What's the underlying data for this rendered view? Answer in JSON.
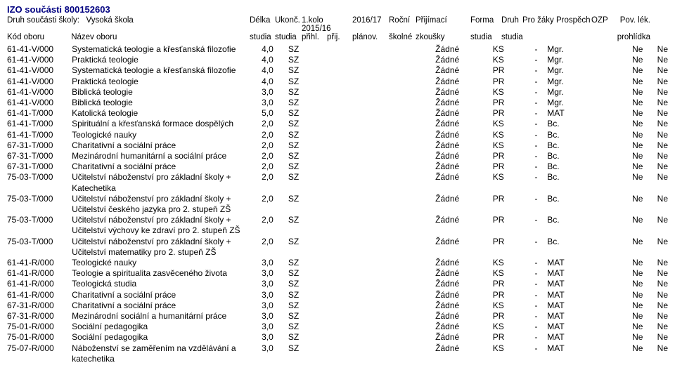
{
  "header": {
    "izo_line": "IZO součásti 800152603",
    "druh_label": "Druh součásti školy:",
    "druh_value": "Vysoká škola",
    "kod_label": "Kód oboru",
    "nazev_label": "Název oboru",
    "cols_top": {
      "delka": "Délka",
      "ukon": "Ukonč.",
      "kolo1": "1.kolo 2015/16",
      "kolo2": "2016/17",
      "rocni": "Roční",
      "prij": "Přijímací",
      "forma": "Forma",
      "druh": "Druh",
      "prozaky": "Pro žáky",
      "prospech": "Prospěch",
      "ozp": "OZP",
      "pov": "Pov. lék."
    },
    "cols_bot": {
      "delka": "studia",
      "ukon": "studia",
      "kolo1": "přihl.",
      "kolo1b": "přij.",
      "kolo2": "plánov.",
      "rocni": "školné",
      "prij": "zkoušky",
      "forma": "studia",
      "druh": "studia",
      "pov": "prohlídka"
    }
  },
  "rows": [
    {
      "kod": "61-41-V/000",
      "nazev": "Systematická teologie a křesťanská filozofie",
      "cont": "",
      "delka": "4,0",
      "ukon": "SZ",
      "prij": "Žádné",
      "for": "KS",
      "druh": "-",
      "pz": "Mgr.",
      "ozp": "Ne",
      "pov": "Ne"
    },
    {
      "kod": "61-41-V/000",
      "nazev": "Praktická teologie",
      "cont": "",
      "delka": "4,0",
      "ukon": "SZ",
      "prij": "Žádné",
      "for": "KS",
      "druh": "-",
      "pz": "Mgr.",
      "ozp": "Ne",
      "pov": "Ne"
    },
    {
      "kod": "61-41-V/000",
      "nazev": "Systematická teologie a křesťanská filozofie",
      "cont": "",
      "delka": "4,0",
      "ukon": "SZ",
      "prij": "Žádné",
      "for": "PR",
      "druh": "-",
      "pz": "Mgr.",
      "ozp": "Ne",
      "pov": "Ne"
    },
    {
      "kod": "61-41-V/000",
      "nazev": "Praktická teologie",
      "cont": "",
      "delka": "4,0",
      "ukon": "SZ",
      "prij": "Žádné",
      "for": "PR",
      "druh": "-",
      "pz": "Mgr.",
      "ozp": "Ne",
      "pov": "Ne"
    },
    {
      "kod": "61-41-V/000",
      "nazev": "Biblická teologie",
      "cont": "",
      "delka": "3,0",
      "ukon": "SZ",
      "prij": "Žádné",
      "for": "KS",
      "druh": "-",
      "pz": "Mgr.",
      "ozp": "Ne",
      "pov": "Ne"
    },
    {
      "kod": "61-41-V/000",
      "nazev": "Biblická teologie",
      "cont": "",
      "delka": "3,0",
      "ukon": "SZ",
      "prij": "Žádné",
      "for": "PR",
      "druh": "-",
      "pz": "Mgr.",
      "ozp": "Ne",
      "pov": "Ne"
    },
    {
      "kod": "61-41-T/000",
      "nazev": "Katolická teologie",
      "cont": "",
      "delka": "5,0",
      "ukon": "SZ",
      "prij": "Žádné",
      "for": "PR",
      "druh": "-",
      "pz": "MAT",
      "ozp": "Ne",
      "pov": "Ne"
    },
    {
      "kod": "61-41-T/000",
      "nazev": "Spirituální a křesťanská formace dospělých",
      "cont": "",
      "delka": "2,0",
      "ukon": "SZ",
      "prij": "Žádné",
      "for": "KS",
      "druh": "-",
      "pz": "Bc.",
      "ozp": "Ne",
      "pov": "Ne"
    },
    {
      "kod": "61-41-T/000",
      "nazev": "Teologické nauky",
      "cont": "",
      "delka": "2,0",
      "ukon": "SZ",
      "prij": "Žádné",
      "for": "KS",
      "druh": "-",
      "pz": "Bc.",
      "ozp": "Ne",
      "pov": "Ne"
    },
    {
      "kod": "67-31-T/000",
      "nazev": "Charitativní a sociální práce",
      "cont": "",
      "delka": "2,0",
      "ukon": "SZ",
      "prij": "Žádné",
      "for": "KS",
      "druh": "-",
      "pz": "Bc.",
      "ozp": "Ne",
      "pov": "Ne"
    },
    {
      "kod": "67-31-T/000",
      "nazev": "Mezinárodní humanitární a sociální práce",
      "cont": "",
      "delka": "2,0",
      "ukon": "SZ",
      "prij": "Žádné",
      "for": "PR",
      "druh": "-",
      "pz": "Bc.",
      "ozp": "Ne",
      "pov": "Ne"
    },
    {
      "kod": "67-31-T/000",
      "nazev": "Charitativní a sociální práce",
      "cont": "",
      "delka": "2,0",
      "ukon": "SZ",
      "prij": "Žádné",
      "for": "PR",
      "druh": "-",
      "pz": "Bc.",
      "ozp": "Ne",
      "pov": "Ne"
    },
    {
      "kod": "75-03-T/000",
      "nazev": "Učitelství náboženství pro základní školy +",
      "cont": "Katechetika",
      "delka": "2,0",
      "ukon": "SZ",
      "prij": "Žádné",
      "for": "KS",
      "druh": "-",
      "pz": "Bc.",
      "ozp": "Ne",
      "pov": "Ne"
    },
    {
      "kod": "75-03-T/000",
      "nazev": "Učitelství náboženství pro základní školy +",
      "cont": "Učitelství českého jazyka pro 2. stupeň ZŠ",
      "delka": "2,0",
      "ukon": "SZ",
      "prij": "Žádné",
      "for": "PR",
      "druh": "-",
      "pz": "Bc.",
      "ozp": "Ne",
      "pov": "Ne"
    },
    {
      "kod": "75-03-T/000",
      "nazev": "Učitelství náboženství pro základní školy +",
      "cont": "Učitelství výchovy ke zdraví pro 2. stupeň ZŠ",
      "delka": "2,0",
      "ukon": "SZ",
      "prij": "Žádné",
      "for": "PR",
      "druh": "-",
      "pz": "Bc.",
      "ozp": "Ne",
      "pov": "Ne"
    },
    {
      "kod": "75-03-T/000",
      "nazev": "Učitelství náboženství pro základní školy +",
      "cont": "Učitelství matematiky pro 2. stupeň ZŠ",
      "delka": "2,0",
      "ukon": "SZ",
      "prij": "Žádné",
      "for": "PR",
      "druh": "-",
      "pz": "Bc.",
      "ozp": "Ne",
      "pov": "Ne"
    },
    {
      "kod": "61-41-R/000",
      "nazev": "Teologické nauky",
      "cont": "",
      "delka": "3,0",
      "ukon": "SZ",
      "prij": "Žádné",
      "for": "KS",
      "druh": "-",
      "pz": "MAT",
      "ozp": "Ne",
      "pov": "Ne"
    },
    {
      "kod": "61-41-R/000",
      "nazev": "Teologie a spiritualita zasvěceného života",
      "cont": "",
      "delka": "3,0",
      "ukon": "SZ",
      "prij": "Žádné",
      "for": "KS",
      "druh": "-",
      "pz": "MAT",
      "ozp": "Ne",
      "pov": "Ne"
    },
    {
      "kod": "61-41-R/000",
      "nazev": "Teologická studia",
      "cont": "",
      "delka": "3,0",
      "ukon": "SZ",
      "prij": "Žádné",
      "for": "PR",
      "druh": "-",
      "pz": "MAT",
      "ozp": "Ne",
      "pov": "Ne"
    },
    {
      "kod": "61-41-R/000",
      "nazev": "Charitativní a sociální práce",
      "cont": "",
      "delka": "3,0",
      "ukon": "SZ",
      "prij": "Žádné",
      "for": "PR",
      "druh": "-",
      "pz": "MAT",
      "ozp": "Ne",
      "pov": "Ne"
    },
    {
      "kod": "67-31-R/000",
      "nazev": "Charitativní a sociální práce",
      "cont": "",
      "delka": "3,0",
      "ukon": "SZ",
      "prij": "Žádné",
      "for": "KS",
      "druh": "-",
      "pz": "MAT",
      "ozp": "Ne",
      "pov": "Ne"
    },
    {
      "kod": "67-31-R/000",
      "nazev": "Mezinárodní sociální a humanitární práce",
      "cont": "",
      "delka": "3,0",
      "ukon": "SZ",
      "prij": "Žádné",
      "for": "PR",
      "druh": "-",
      "pz": "MAT",
      "ozp": "Ne",
      "pov": "Ne"
    },
    {
      "kod": "75-01-R/000",
      "nazev": "Sociální pedagogika",
      "cont": "",
      "delka": "3,0",
      "ukon": "SZ",
      "prij": "Žádné",
      "for": "KS",
      "druh": "-",
      "pz": "MAT",
      "ozp": "Ne",
      "pov": "Ne"
    },
    {
      "kod": "75-01-R/000",
      "nazev": "Sociální pedagogika",
      "cont": "",
      "delka": "3,0",
      "ukon": "SZ",
      "prij": "Žádné",
      "for": "PR",
      "druh": "-",
      "pz": "MAT",
      "ozp": "Ne",
      "pov": "Ne"
    },
    {
      "kod": "75-07-R/000",
      "nazev": "Náboženství se zaměřením na vzdělávání a",
      "cont": "katechetika",
      "delka": "3,0",
      "ukon": "SZ",
      "prij": "Žádné",
      "for": "KS",
      "druh": "-",
      "pz": "MAT",
      "ozp": "Ne",
      "pov": "Ne"
    }
  ]
}
